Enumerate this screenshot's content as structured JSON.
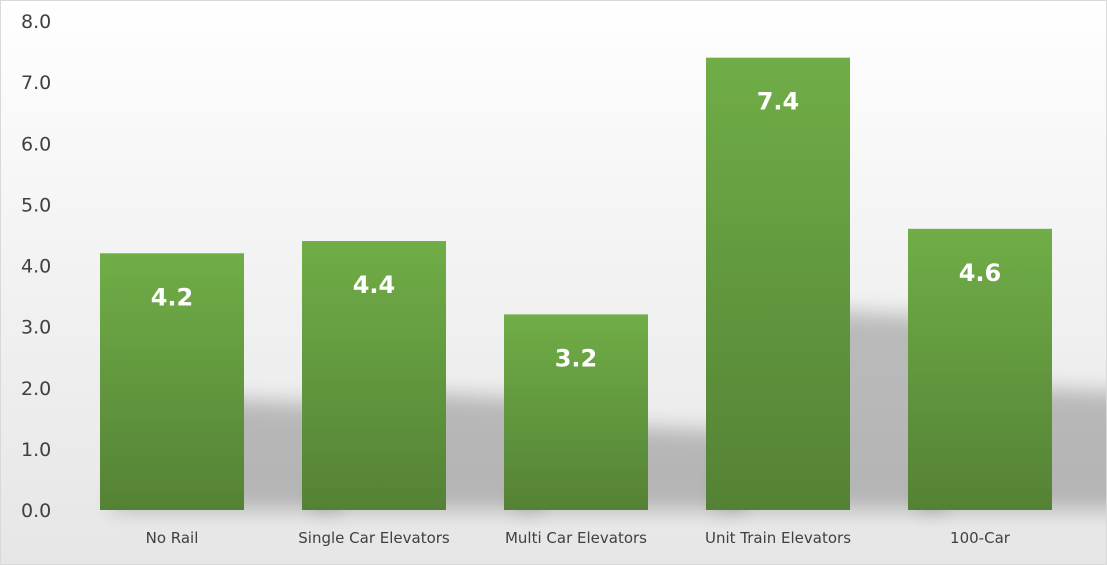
{
  "chart_data": {
    "type": "bar",
    "title": "",
    "xlabel": "",
    "ylabel": "",
    "categories": [
      "No Rail",
      "Single Car Elevators",
      "Multi Car Elevators",
      "Unit Train Elevators",
      "100-Car"
    ],
    "values": [
      4.2,
      4.4,
      3.2,
      7.4,
      4.6
    ],
    "data_labels": [
      "4.2",
      "4.4",
      "3.2",
      "7.4",
      "4.6"
    ],
    "ylim": [
      0,
      8
    ],
    "y_ticks": [
      "0.0",
      "1.0",
      "2.0",
      "3.0",
      "4.0",
      "5.0",
      "6.0",
      "7.0",
      "8.0"
    ],
    "grid": false,
    "legend": "none",
    "colors": {
      "bar_top": "#70ad47",
      "bar_bottom": "#548235",
      "label": "#ffffff",
      "axis_text": "#404040"
    }
  }
}
